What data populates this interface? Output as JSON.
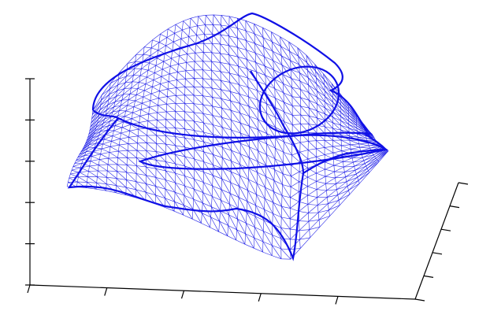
{
  "figure": {
    "type": "3d-wireframe-surface",
    "mesh_color": "#1010e6",
    "background_color": "#ffffff",
    "axis_color": "#000000",
    "axes": {
      "x_ticks": 5,
      "y_ticks": 6,
      "z_ticks": 6,
      "tick_labels_shown": false
    }
  }
}
